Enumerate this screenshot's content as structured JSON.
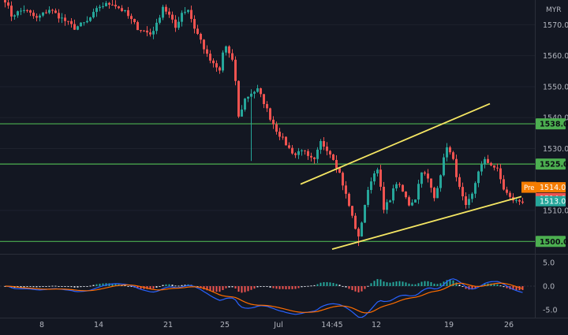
{
  "chart_data": [
    {
      "type": "candlestick",
      "currency": "MYR",
      "ylim": [
        1496,
        1578
      ],
      "y_ticks": [
        {
          "value": 1570,
          "label": "1570.0"
        },
        {
          "value": 1560,
          "label": "1560.0"
        },
        {
          "value": 1550,
          "label": "1550.0"
        },
        {
          "value": 1540,
          "label": "1540.0"
        },
        {
          "value": 1530,
          "label": "1530.0"
        },
        {
          "value": 1510,
          "label": "1510.0"
        }
      ],
      "x_ticks": [
        "8",
        "14",
        "21",
        "25",
        "Jul",
        "14:45",
        "12",
        "19",
        "26"
      ],
      "support_resistance_levels": [
        {
          "value": 1538.0,
          "label": "1538.0",
          "color": "#4caf50"
        },
        {
          "value": 1525.0,
          "label": "1525.0",
          "color": "#4caf50"
        },
        {
          "value": 1500.0,
          "label": "1500.0",
          "color": "#4caf50"
        }
      ],
      "channel_lines": {
        "color": "#f5e663",
        "upper": [
          {
            "bar": 94,
            "price": 1518.5
          },
          {
            "bar": 154,
            "price": 1544.5
          }
        ],
        "lower": [
          {
            "bar": 104,
            "price": 1497.5
          },
          {
            "bar": 164,
            "price": 1514.5
          }
        ]
      },
      "price_markers": [
        {
          "label": "Pre",
          "value": "1514.0",
          "price": 1517.5,
          "color": "#f57c00"
        },
        {
          "label": "",
          "value": "1514.0",
          "price": 1514.0,
          "color": "#ef5350"
        },
        {
          "label": "",
          "value": "1513.0",
          "price": 1513.0,
          "color": "#26a69a"
        }
      ],
      "colors": {
        "up": "#26a69a",
        "down": "#ef5350",
        "background": "#131722",
        "axis_text": "#b2b5be"
      },
      "anchors": [
        [
          0,
          1578
        ],
        [
          2,
          1573
        ],
        [
          6,
          1575
        ],
        [
          10,
          1572
        ],
        [
          14,
          1575
        ],
        [
          18,
          1572
        ],
        [
          22,
          1569
        ],
        [
          26,
          1571
        ],
        [
          30,
          1576
        ],
        [
          34,
          1577
        ],
        [
          38,
          1574
        ],
        [
          42,
          1569
        ],
        [
          46,
          1567
        ],
        [
          48,
          1570
        ],
        [
          50,
          1576
        ],
        [
          52,
          1573
        ],
        [
          54,
          1569
        ],
        [
          56,
          1574
        ],
        [
          58,
          1575
        ],
        [
          60,
          1569
        ],
        [
          62,
          1565
        ],
        [
          64,
          1560
        ],
        [
          66,
          1557
        ],
        [
          68,
          1555
        ],
        [
          69,
          1561
        ],
        [
          70,
          1563
        ],
        [
          72,
          1558
        ],
        [
          73,
          1552
        ],
        [
          74,
          1540
        ],
        [
          76,
          1546
        ],
        [
          78,
          1548
        ],
        [
          80,
          1549
        ],
        [
          82,
          1545
        ],
        [
          84,
          1540
        ],
        [
          86,
          1536
        ],
        [
          88,
          1533
        ],
        [
          90,
          1530
        ],
        [
          92,
          1528
        ],
        [
          94,
          1530
        ],
        [
          96,
          1527
        ],
        [
          98,
          1526
        ],
        [
          100,
          1532
        ],
        [
          102,
          1530
        ],
        [
          104,
          1527
        ],
        [
          106,
          1522
        ],
        [
          108,
          1515
        ],
        [
          110,
          1508
        ],
        [
          112,
          1501
        ],
        [
          114,
          1512
        ],
        [
          116,
          1520
        ],
        [
          118,
          1524
        ],
        [
          120,
          1510
        ],
        [
          122,
          1514
        ],
        [
          124,
          1519
        ],
        [
          126,
          1516
        ],
        [
          128,
          1512
        ],
        [
          130,
          1514
        ],
        [
          132,
          1523
        ],
        [
          134,
          1520
        ],
        [
          136,
          1514
        ],
        [
          138,
          1522
        ],
        [
          140,
          1531
        ],
        [
          142,
          1526
        ],
        [
          144,
          1517
        ],
        [
          146,
          1511
        ],
        [
          148,
          1515
        ],
        [
          150,
          1523
        ],
        [
          152,
          1526
        ],
        [
          154,
          1525
        ],
        [
          156,
          1523
        ],
        [
          158,
          1517
        ],
        [
          160,
          1514
        ],
        [
          162,
          1513
        ]
      ]
    },
    {
      "type": "macd",
      "ylim": [
        -6.5,
        6.5
      ],
      "y_ticks": [
        {
          "value": 5.0,
          "label": "5.0"
        },
        {
          "value": 0.0,
          "label": "0.0"
        },
        {
          "value": -5.0,
          "label": "-5.0"
        }
      ],
      "colors": {
        "macd_line": "#2962ff",
        "signal_line": "#ff6d00",
        "hist_up": "#26a69a",
        "hist_down": "#ef5350",
        "hist_neutral": "#e0e3eb"
      }
    }
  ]
}
